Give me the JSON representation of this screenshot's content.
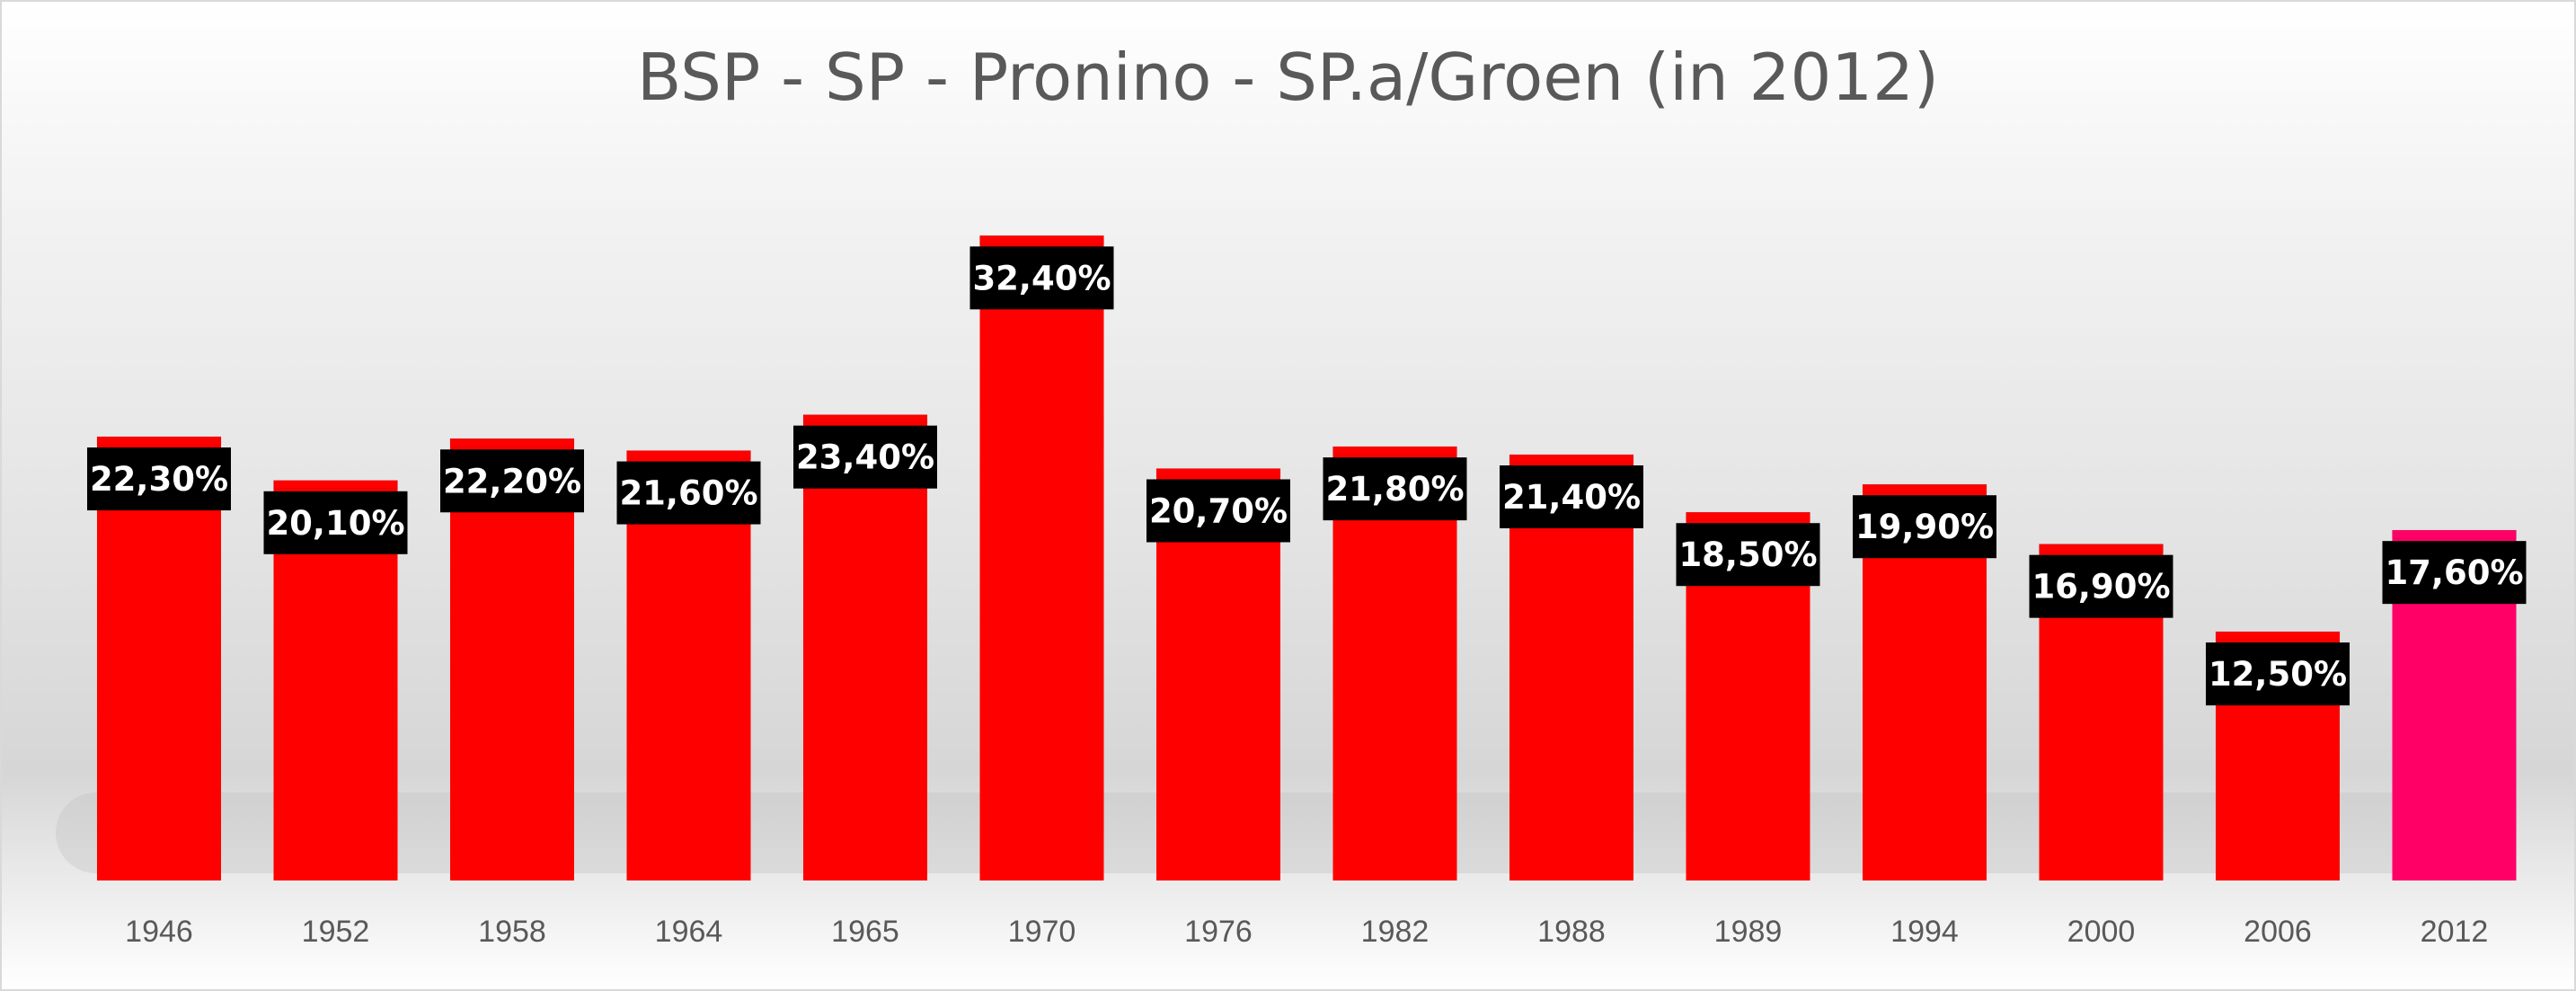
{
  "chart_data": {
    "type": "bar",
    "title": "BSP -  SP - Pronino  - SP.a/Groen (in 2012)",
    "xlabel": "",
    "ylabel": "",
    "ylim": [
      0,
      35
    ],
    "grid": false,
    "legend": "none",
    "categories": [
      "1946",
      "1952",
      "1958",
      "1964",
      "1965",
      "1970",
      "1976",
      "1982",
      "1988",
      "1989",
      "1994",
      "2000",
      "2006",
      "2012"
    ],
    "values": [
      22.3,
      20.1,
      22.2,
      21.6,
      23.4,
      32.4,
      20.7,
      21.8,
      21.4,
      18.5,
      19.9,
      16.9,
      12.5,
      17.6
    ],
    "data_labels": [
      "22,30%",
      "20,10%",
      "22,20%",
      "21,60%",
      "23,40%",
      "32,40%",
      "20,70%",
      "21,80%",
      "21,40%",
      "18,50%",
      "19,90%",
      "16,90%",
      "12,50%",
      "17,60%"
    ],
    "colors": {
      "bar": "#ff0000",
      "highlight_bar": "#ff0066",
      "highlight_category": "2012",
      "label_box": "#000000",
      "label_text": "#ffffff",
      "tick_text": "#595959"
    }
  }
}
